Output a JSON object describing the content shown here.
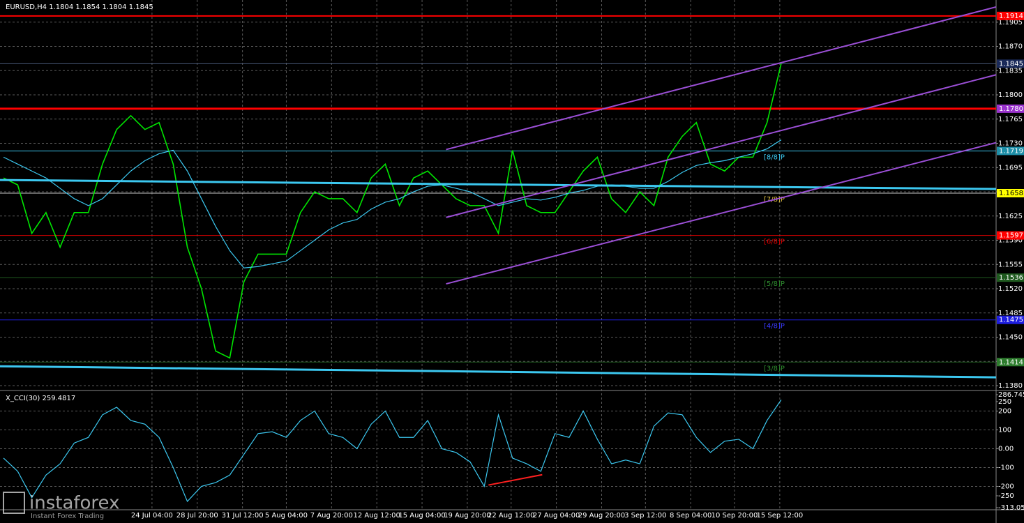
{
  "chart_data": [
    {
      "type": "line",
      "title": "EURUSD,H4  1.1804 1.1854 1.1804 1.1845",
      "xlim": [
        -0.25,
        70.2
      ],
      "ylim": [
        1.1375,
        1.1937
      ],
      "grid": true,
      "xticks": [
        {
          "value": 10.5,
          "label": "24 Jul 04:00"
        },
        {
          "value": 13.7,
          "label": "28 Jul 20:00"
        },
        {
          "value": 16.9,
          "label": "31 Jul 12:00"
        },
        {
          "value": 20.0,
          "label": "5 Aug 04:00"
        },
        {
          "value": 23.2,
          "label": "7 Aug 20:00"
        },
        {
          "value": 26.4,
          "label": "12 Aug 12:00"
        },
        {
          "value": 29.6,
          "label": "15 Aug 04:00"
        },
        {
          "value": 32.8,
          "label": "19 Aug 20:00"
        },
        {
          "value": 35.9,
          "label": "22 Aug 12:00"
        },
        {
          "value": 39.1,
          "label": "27 Aug 04:00"
        },
        {
          "value": 42.3,
          "label": "29 Aug 20:00"
        },
        {
          "value": 45.4,
          "label": "3 Sep 12:00"
        },
        {
          "value": 48.6,
          "label": "8 Sep 04:00"
        },
        {
          "value": 51.7,
          "label": "10 Sep 20:00"
        },
        {
          "value": 54.9,
          "label": "15 Sep 12:00"
        }
      ],
      "yticks": [
        1.1905,
        {
          "value": 1.187,
          "label": "1.1870"
        },
        1.1835,
        {
          "value": 1.18,
          "label": "1.1800"
        },
        1.1765,
        {
          "value": 1.173,
          "label": "1.1730"
        },
        1.1695,
        {
          "value": 1.166,
          "label": "1.1660"
        },
        1.1625,
        {
          "value": 1.159,
          "label": "1.1590"
        },
        1.1555,
        {
          "value": 1.152,
          "label": "1.1520"
        },
        1.1485,
        {
          "value": 1.145,
          "label": "1.1450"
        },
        1.1415,
        {
          "value": 1.138,
          "label": "1.1380"
        }
      ],
      "series": [
        {
          "color": "#00e600",
          "values": [
            1.168,
            1.167,
            1.16,
            1.163,
            1.158,
            1.163,
            1.163,
            1.17,
            1.175,
            1.177,
            1.175,
            1.176,
            1.17,
            1.158,
            1.152,
            1.143,
            1.142,
            1.153,
            1.157,
            1.157,
            1.157,
            1.163,
            1.166,
            1.165,
            1.165,
            1.163,
            1.168,
            1.17,
            1.164,
            1.168,
            1.169,
            1.167,
            1.165,
            1.164,
            1.164,
            1.16,
            1.172,
            1.164,
            1.163,
            1.163,
            1.166,
            1.169,
            1.171,
            1.165,
            1.163,
            1.166,
            1.164,
            1.171,
            1.174,
            1.176,
            1.17,
            1.169,
            1.171,
            1.171,
            1.176,
            1.1845
          ]
        },
        {
          "color": "#3cc8f0",
          "values": [
            1.171,
            1.17,
            1.169,
            1.168,
            1.1665,
            1.165,
            1.164,
            1.165,
            1.167,
            1.169,
            1.1705,
            1.1715,
            1.172,
            1.169,
            1.165,
            1.161,
            1.1575,
            1.155,
            1.1552,
            1.1556,
            1.156,
            1.1575,
            1.159,
            1.1605,
            1.1615,
            1.162,
            1.1635,
            1.1645,
            1.165,
            1.166,
            1.1668,
            1.167,
            1.1665,
            1.166,
            1.165,
            1.164,
            1.1645,
            1.165,
            1.1648,
            1.1652,
            1.1658,
            1.1662,
            1.1668,
            1.167,
            1.1668,
            1.1665,
            1.1665,
            1.1675,
            1.1688,
            1.1698,
            1.1702,
            1.1705,
            1.171,
            1.1715,
            1.1722,
            1.1735
          ]
        }
      ],
      "trend_lines": [
        {
          "color": "#3cc8f0",
          "width": 3,
          "x": [
            -0.25,
            70.2
          ],
          "values": [
            1.1677,
            1.1664
          ]
        },
        {
          "color": "#3cc8f0",
          "width": 3,
          "x": [
            -0.25,
            70.2
          ],
          "values": [
            1.1408,
            1.1392
          ]
        },
        {
          "color": "#9b4fd6",
          "width": 2,
          "x": [
            31.3,
            70.2
          ],
          "values": [
            1.1721,
            1.1927
          ]
        },
        {
          "color": "#9b4fd6",
          "width": 2,
          "x": [
            31.3,
            70.2
          ],
          "values": [
            1.1623,
            1.1829
          ]
        },
        {
          "color": "#9b4fd6",
          "width": 2,
          "x": [
            31.3,
            70.2
          ],
          "values": [
            1.1527,
            1.1731
          ]
        }
      ],
      "levels": [
        {
          "value": 1.1914,
          "color": "#ff0000",
          "width": 2,
          "label_bg": "#ff0000"
        },
        {
          "value": 1.1845,
          "color": "#4a5a7a",
          "width": 1,
          "label_bg": "#1a2a5a"
        },
        {
          "value": 1.178,
          "label": "1.1780",
          "color": "#ff0000",
          "width": 3,
          "label_bg": "#9932cc"
        },
        {
          "value": 1.1719,
          "color": "#3cc8f0",
          "width": 1,
          "label_bg": "#1e8fa8",
          "tag": "[8/8]P",
          "tag_color": "#3cc8f0"
        },
        {
          "value": 1.1658,
          "color": "#c8c8c8",
          "width": 1,
          "label_bg": "#ffff00",
          "label_color": "#000000",
          "tag": "[7/8]P",
          "tag_color": "#e0c040"
        },
        {
          "value": 1.1597,
          "color": "#e00000",
          "width": 1,
          "label_bg": "#ff0000",
          "tag": "[6/8]P",
          "tag_color": "#e00000"
        },
        {
          "value": 1.1536,
          "color": "#1f5a1f",
          "width": 1,
          "label_bg": "#1f5a1f",
          "tag": "[5/8]P",
          "tag_color": "#2e8b2e"
        },
        {
          "value": 1.1475,
          "color": "#1e1ee0",
          "width": 1,
          "label_bg": "#1e1ee0",
          "tag": "[4/8]P",
          "tag_color": "#3a3aff"
        },
        {
          "value": 1.1414,
          "color": "#1f5a1f",
          "width": 1,
          "label_bg": "#2e7d2e",
          "tag": "[3/8]P",
          "tag_color": "#2e8b2e"
        }
      ]
    },
    {
      "type": "line",
      "title": "X_CCI(30) 259.4817",
      "xlim": [
        -0.25,
        70.2
      ],
      "ylim": [
        -313.053,
        286.7453
      ],
      "yticks": [
        286.7453,
        250,
        200,
        100,
        {
          "value": 0,
          "label": "0.00"
        },
        -100,
        -200,
        -250,
        -313.053
      ],
      "series": [
        {
          "color": "#3cc8f0",
          "values": [
            -50,
            -120,
            -260,
            -140,
            -80,
            30,
            60,
            180,
            220,
            150,
            130,
            60,
            -100,
            -280,
            -200,
            -180,
            -140,
            -30,
            80,
            90,
            60,
            150,
            200,
            80,
            60,
            0,
            130,
            200,
            60,
            60,
            150,
            0,
            -20,
            -70,
            -200,
            180,
            -50,
            -80,
            -120,
            80,
            60,
            200,
            50,
            -80,
            -60,
            -80,
            120,
            190,
            180,
            60,
            -20,
            40,
            50,
            0,
            150,
            259.4817
          ]
        }
      ],
      "trend_lines": [
        {
          "color": "#ff2020",
          "width": 2,
          "x": [
            34.3,
            38.1
          ],
          "values": [
            -193,
            -138
          ]
        }
      ]
    }
  ],
  "watermark": {
    "brand": "instaforex",
    "slogan": "Instant Forex Trading"
  }
}
